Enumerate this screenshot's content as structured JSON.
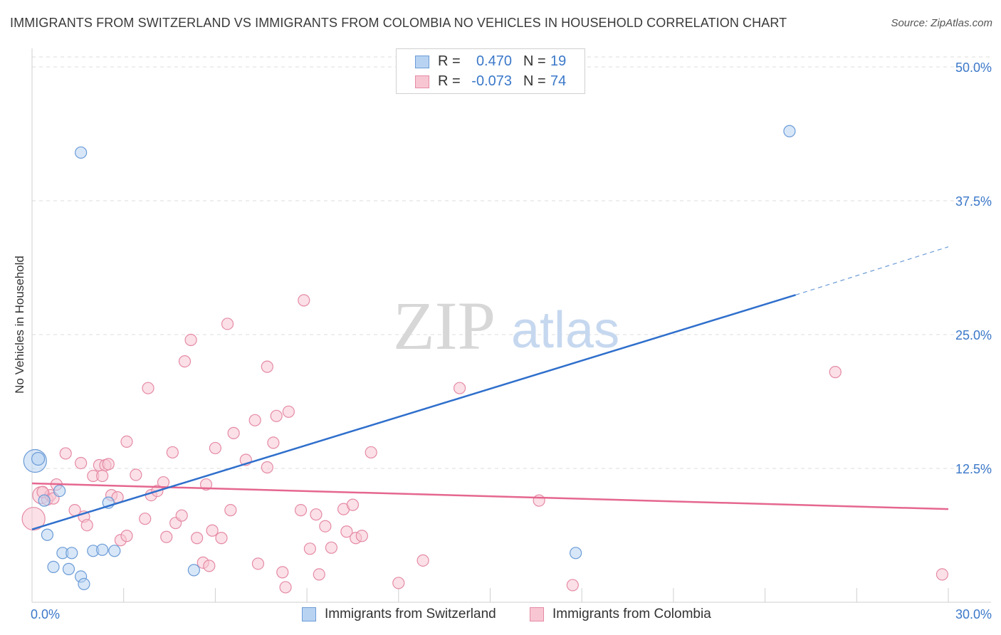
{
  "header": {
    "title": "IMMIGRANTS FROM SWITZERLAND VS IMMIGRANTS FROM COLOMBIA NO VEHICLES IN HOUSEHOLD CORRELATION CHART",
    "source": "Source: ZipAtlas.com"
  },
  "watermark": {
    "zip": "ZIP",
    "atlas": "atlas"
  },
  "stats": {
    "switzerland": {
      "r_label": "R =",
      "r_value": "0.470",
      "n_label": "N =",
      "n_value": "19"
    },
    "colombia": {
      "r_label": "R =",
      "r_value": "-0.073",
      "n_label": "N =",
      "n_value": "74"
    }
  },
  "legend": {
    "switzerland": "Immigrants from Switzerland",
    "colombia": "Immigrants from Colombia"
  },
  "colors": {
    "blue_fill": "#b8d3f2",
    "blue_stroke": "#6b9bd6",
    "blue_line": "#2f6fcc",
    "pink_fill": "#f8c6d3",
    "pink_stroke": "#e58aa5",
    "pink_line": "#e5678f",
    "tick_text": "#3b78c9",
    "grid": "#dcdcdc"
  },
  "chart_data": {
    "type": "scatter",
    "title": "IMMIGRANTS FROM SWITZERLAND VS IMMIGRANTS FROM COLOMBIA NO VEHICLES IN HOUSEHOLD CORRELATION CHART",
    "xlabel": "",
    "ylabel": "No Vehicles in Household",
    "xlim": [
      0,
      30
    ],
    "ylim": [
      0,
      50
    ],
    "x_tick_labels": [
      "0.0%",
      "30.0%"
    ],
    "y_ticks": [
      12.5,
      25.0,
      37.5,
      50.0
    ],
    "y_tick_labels": [
      "12.5%",
      "25.0%",
      "37.5%",
      "50.0%"
    ],
    "grid": true,
    "series": [
      {
        "name": "Immigrants from Switzerland",
        "color": "blue",
        "points": [
          [
            0.1,
            13.2,
            16
          ],
          [
            0.2,
            13.4,
            9
          ],
          [
            0.4,
            9.5,
            8
          ],
          [
            0.5,
            6.3,
            8
          ],
          [
            0.7,
            3.3,
            8
          ],
          [
            0.9,
            10.4,
            8
          ],
          [
            1.0,
            4.6,
            8
          ],
          [
            1.2,
            3.1,
            8
          ],
          [
            1.3,
            4.6,
            8
          ],
          [
            1.6,
            2.4,
            8
          ],
          [
            1.7,
            1.7,
            8
          ],
          [
            2.0,
            4.8,
            8
          ],
          [
            2.3,
            4.9,
            8
          ],
          [
            2.5,
            9.3,
            8
          ],
          [
            2.7,
            4.8,
            8
          ],
          [
            5.3,
            3.0,
            8
          ],
          [
            17.8,
            4.6,
            8
          ],
          [
            1.6,
            42.0,
            8
          ],
          [
            24.8,
            44.0,
            8
          ]
        ],
        "trend": {
          "x": [
            0,
            25
          ],
          "y": [
            6.8,
            28.7
          ],
          "dashed_extension": {
            "x": [
              25,
              30
            ],
            "y": [
              28.7,
              33.2
            ]
          }
        }
      },
      {
        "name": "Immigrants from Colombia",
        "color": "pink",
        "points": [
          [
            0.05,
            7.8,
            16
          ],
          [
            0.3,
            10.0,
            12
          ],
          [
            0.5,
            9.6,
            8
          ],
          [
            0.6,
            10.0,
            8
          ],
          [
            0.7,
            9.7,
            8
          ],
          [
            0.8,
            11.0,
            8
          ],
          [
            1.1,
            13.9,
            8
          ],
          [
            1.4,
            8.6,
            8
          ],
          [
            1.6,
            13.0,
            8
          ],
          [
            1.7,
            8.0,
            8
          ],
          [
            1.8,
            7.2,
            8
          ],
          [
            2.0,
            11.8,
            8
          ],
          [
            2.2,
            12.8,
            8
          ],
          [
            2.3,
            11.8,
            8
          ],
          [
            2.4,
            12.8,
            8
          ],
          [
            2.5,
            12.9,
            8
          ],
          [
            2.6,
            10.0,
            8
          ],
          [
            2.8,
            9.8,
            8
          ],
          [
            2.9,
            5.8,
            8
          ],
          [
            3.1,
            6.2,
            8
          ],
          [
            3.1,
            15.0,
            8
          ],
          [
            3.4,
            11.9,
            8
          ],
          [
            3.7,
            7.8,
            8
          ],
          [
            3.8,
            20.0,
            8
          ],
          [
            3.9,
            10.0,
            8
          ],
          [
            4.1,
            10.4,
            8
          ],
          [
            4.3,
            11.2,
            8
          ],
          [
            4.4,
            6.1,
            8
          ],
          [
            4.6,
            14.0,
            8
          ],
          [
            4.7,
            7.4,
            8
          ],
          [
            4.9,
            8.1,
            8
          ],
          [
            5.0,
            22.5,
            8
          ],
          [
            5.2,
            24.5,
            8
          ],
          [
            5.4,
            6.0,
            8
          ],
          [
            5.6,
            3.7,
            8
          ],
          [
            5.7,
            11.0,
            8
          ],
          [
            5.8,
            3.4,
            8
          ],
          [
            5.9,
            6.7,
            8
          ],
          [
            6.0,
            14.4,
            8
          ],
          [
            6.2,
            6.0,
            8
          ],
          [
            6.4,
            26.0,
            8
          ],
          [
            6.5,
            8.6,
            8
          ],
          [
            6.6,
            15.8,
            8
          ],
          [
            7.0,
            13.3,
            8
          ],
          [
            7.3,
            17.0,
            8
          ],
          [
            7.4,
            3.6,
            8
          ],
          [
            7.7,
            12.6,
            8
          ],
          [
            7.7,
            22.0,
            8
          ],
          [
            7.9,
            14.9,
            8
          ],
          [
            8.0,
            17.4,
            8
          ],
          [
            8.2,
            2.8,
            8
          ],
          [
            8.3,
            1.4,
            8
          ],
          [
            8.4,
            17.8,
            8
          ],
          [
            8.8,
            8.6,
            8
          ],
          [
            8.9,
            28.2,
            8
          ],
          [
            9.1,
            5.0,
            8
          ],
          [
            9.3,
            8.2,
            8
          ],
          [
            9.4,
            2.6,
            8
          ],
          [
            9.6,
            7.1,
            8
          ],
          [
            9.8,
            5.1,
            8
          ],
          [
            10.2,
            8.7,
            8
          ],
          [
            10.3,
            6.6,
            8
          ],
          [
            10.5,
            9.1,
            8
          ],
          [
            10.6,
            6.0,
            8
          ],
          [
            10.8,
            6.2,
            8
          ],
          [
            11.1,
            14.0,
            8
          ],
          [
            12.0,
            1.8,
            8
          ],
          [
            12.8,
            3.9,
            8
          ],
          [
            14.0,
            20.0,
            8
          ],
          [
            16.6,
            9.5,
            8
          ],
          [
            17.7,
            1.6,
            8
          ],
          [
            26.3,
            21.5,
            8
          ],
          [
            29.8,
            2.6,
            8
          ],
          [
            0.35,
            10.3,
            8
          ]
        ],
        "trend": {
          "x": [
            0,
            30
          ],
          "y": [
            11.1,
            8.7
          ]
        }
      }
    ]
  }
}
